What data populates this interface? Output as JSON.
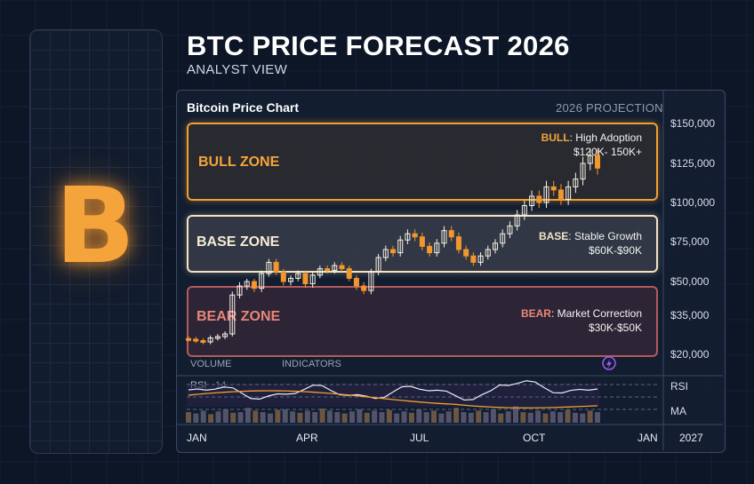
{
  "header": {
    "title": "BTC PRICE FORECAST 2026",
    "subtitle": "ANALYST VIEW"
  },
  "logo": {
    "glyph": "B",
    "icon": "bitcoin-icon",
    "color": "#f4a43a"
  },
  "panel": {
    "title": "Bitcoin Price Chart",
    "projection": "2026 PROJECTION"
  },
  "zones": {
    "bull": {
      "name": "BULL ZONE",
      "key": "BULL",
      "desc": "High Adoption",
      "range": "$120K- 150K+",
      "color": "#f0a032"
    },
    "base": {
      "name": "BASE ZONE",
      "key": "BASE",
      "desc": "Stable Growth",
      "range": "$60K-$90K",
      "color": "#f3e3c3"
    },
    "bear": {
      "name": "BEAR ZONE",
      "key": "BEAR",
      "desc": "Market Correction",
      "range": "$30K-$50K",
      "color": "#e07a6c"
    }
  },
  "tabs": {
    "volume": "VOLUME",
    "indicators": "INDICATORS"
  },
  "indicator": {
    "rsi_label": "RSI",
    "rsi_period": "14",
    "rsi_side": "RSI",
    "ma_side": "MA"
  },
  "x_axis": {
    "labels": [
      "JAN",
      "APR",
      "JUL",
      "OCT",
      "JAN"
    ],
    "year": "2027"
  },
  "chart_data": {
    "type": "candlestick",
    "title": "Bitcoin Price Chart",
    "y_ticks": [
      "$150,000",
      "$125,000",
      "$100,000",
      "$75,000",
      "$50,000",
      "$35,000",
      "$20,000"
    ],
    "x_ticks": [
      "JAN",
      "APR",
      "JUL",
      "OCT",
      "JAN"
    ],
    "zones": [
      {
        "name": "BULL ZONE",
        "low": 120000,
        "high": 150000
      },
      {
        "name": "BASE ZONE",
        "low": 60000,
        "high": 90000
      },
      {
        "name": "BEAR ZONE",
        "low": 30000,
        "high": 50000
      }
    ],
    "close": [
      26000,
      25500,
      25000,
      26500,
      27000,
      28000,
      44000,
      48000,
      50000,
      47000,
      55000,
      62000,
      56000,
      50000,
      52000,
      55000,
      49000,
      54000,
      58000,
      57000,
      60000,
      58000,
      52000,
      48000,
      46000,
      56000,
      65000,
      70000,
      68000,
      76000,
      80000,
      78000,
      72000,
      68000,
      74000,
      82000,
      78000,
      70000,
      66000,
      62000,
      66000,
      70000,
      74000,
      80000,
      85000,
      92000,
      98000,
      104000,
      100000,
      110000,
      108000,
      102000,
      110000,
      115000,
      125000,
      130000,
      122000
    ],
    "colors": {
      "up": "#f6f0e4",
      "down": "#f2962e"
    }
  }
}
